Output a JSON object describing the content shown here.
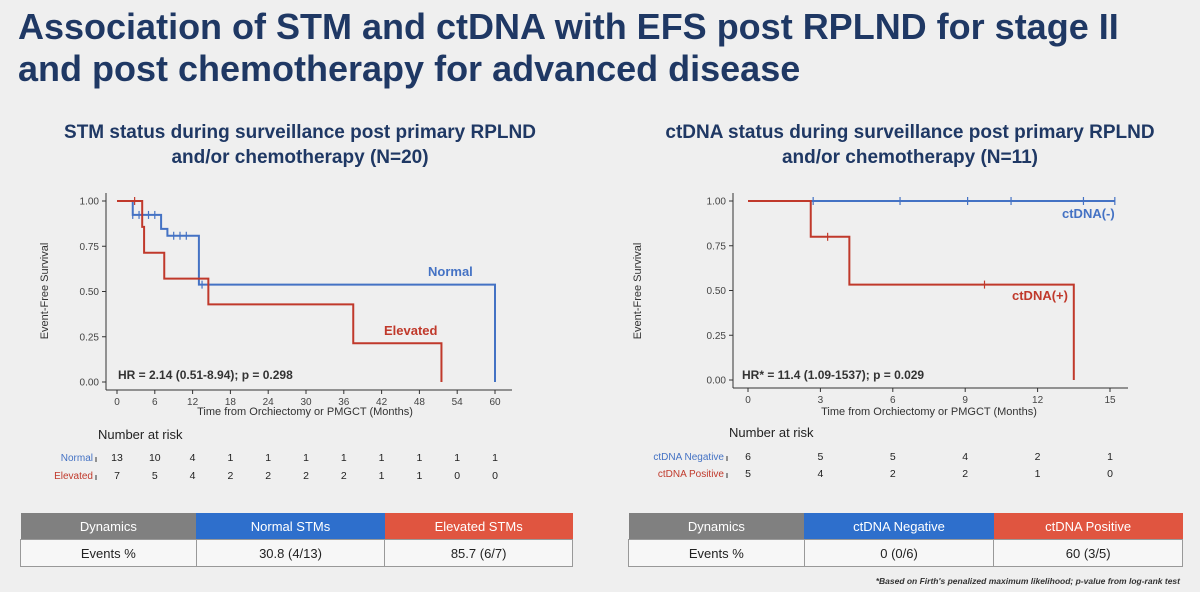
{
  "slide": {
    "title": "Association of STM and ctDNA with EFS post RPLND for stage II and post chemotherapy for advanced disease",
    "footnote": "*Based on Firth's penalized maximum likelihood; p-value from log-rank test"
  },
  "colors": {
    "blue": "#4472c4",
    "red": "#c0392b",
    "gray": "#808080",
    "table_blue": "#2e6fcc",
    "table_red": "#e05540"
  },
  "chart_data": [
    {
      "type": "line",
      "title": "STM status during surveillance post primary RPLND and/or chemotherapy (N=20)",
      "xlabel": "Time from Orchiectomy or PMGCT (Months)",
      "ylabel": "Event-Free Survival",
      "xlim": [
        0,
        60
      ],
      "ylim": [
        0,
        1
      ],
      "x_ticks": [
        0,
        6,
        12,
        18,
        24,
        30,
        36,
        42,
        48,
        54,
        60
      ],
      "y_ticks": [
        "0.00",
        "0.25",
        "0.50",
        "0.75",
        "1.00"
      ],
      "annotation": "HR = 2.14 (0.51-8.94); p = 0.298",
      "series": [
        {
          "name": "Normal",
          "color": "#4472c4",
          "steps": [
            [
              0,
              1.0
            ],
            [
              2.5,
              0.923
            ],
            [
              7,
              0.846
            ],
            [
              8,
              0.808
            ],
            [
              13,
              0.538
            ],
            [
              60,
              0.538
            ],
            [
              60,
              0.0
            ]
          ],
          "censors": [
            [
              2.5,
              0.923
            ],
            [
              3.5,
              0.923
            ],
            [
              5,
              0.923
            ],
            [
              6,
              0.923
            ],
            [
              9,
              0.808
            ],
            [
              10,
              0.808
            ],
            [
              11,
              0.808
            ],
            [
              13.5,
              0.538
            ]
          ]
        },
        {
          "name": "Elevated",
          "color": "#c0392b",
          "steps": [
            [
              0,
              1.0
            ],
            [
              4,
              0.857
            ],
            [
              4.3,
              0.714
            ],
            [
              7.5,
              0.571
            ],
            [
              14.5,
              0.429
            ],
            [
              37.5,
              0.214
            ],
            [
              51.5,
              0.214
            ],
            [
              51.5,
              0.0
            ]
          ],
          "censors": [
            [
              2.8,
              1.0
            ]
          ]
        }
      ],
      "risk_table": {
        "title": "Number at risk",
        "rows": [
          {
            "label": "Normal",
            "values": [
              "13",
              "10",
              "4",
              "1",
              "1",
              "1",
              "1",
              "1",
              "1",
              "1",
              "1"
            ]
          },
          {
            "label": "Elevated",
            "values": [
              "7",
              "5",
              "4",
              "2",
              "2",
              "2",
              "2",
              "1",
              "1",
              "0",
              "0"
            ]
          }
        ]
      },
      "events_table": {
        "headers": [
          "Dynamics",
          "Normal STMs",
          "Elevated STMs"
        ],
        "row": [
          "Events %",
          "30.8 (4/13)",
          "85.7 (6/7)"
        ]
      }
    },
    {
      "type": "line",
      "title": "ctDNA status during surveillance post primary RPLND and/or chemotherapy (N=11)",
      "xlabel": "Time from Orchiectomy or PMGCT (Months)",
      "ylabel": "Event-Free Survival",
      "xlim": [
        0,
        15
      ],
      "ylim": [
        0,
        1
      ],
      "x_ticks": [
        0,
        3,
        6,
        9,
        12,
        15
      ],
      "y_ticks": [
        "0.00",
        "0.25",
        "0.50",
        "0.75",
        "1.00"
      ],
      "annotation": "HR* = 11.4 (1.09-1537); p = 0.029",
      "series": [
        {
          "name": "ctDNA(-)",
          "color": "#4472c4",
          "steps": [
            [
              0,
              1.0
            ],
            [
              15.2,
              1.0
            ]
          ],
          "censors": [
            [
              2.7,
              1.0
            ],
            [
              6.3,
              1.0
            ],
            [
              9.1,
              1.0
            ],
            [
              10.9,
              1.0
            ],
            [
              13.9,
              1.0
            ],
            [
              15.2,
              1.0
            ]
          ]
        },
        {
          "name": "ctDNA(+)",
          "color": "#c0392b",
          "steps": [
            [
              0,
              1.0
            ],
            [
              2.6,
              0.8
            ],
            [
              4.2,
              0.533
            ],
            [
              13.5,
              0.533
            ],
            [
              13.5,
              0.0
            ]
          ],
          "censors": [
            [
              3.3,
              0.8
            ],
            [
              9.8,
              0.533
            ]
          ]
        }
      ],
      "risk_table": {
        "title": "Number at risk",
        "rows": [
          {
            "label": "ctDNA Negative",
            "values": [
              "6",
              "5",
              "5",
              "4",
              "2",
              "1"
            ]
          },
          {
            "label": "ctDNA Positive",
            "values": [
              "5",
              "4",
              "2",
              "2",
              "1",
              "0"
            ]
          }
        ]
      },
      "events_table": {
        "headers": [
          "Dynamics",
          "ctDNA Negative",
          "ctDNA Positive"
        ],
        "row": [
          "Events %",
          "0 (0/6)",
          "60 (3/5)"
        ]
      }
    }
  ]
}
